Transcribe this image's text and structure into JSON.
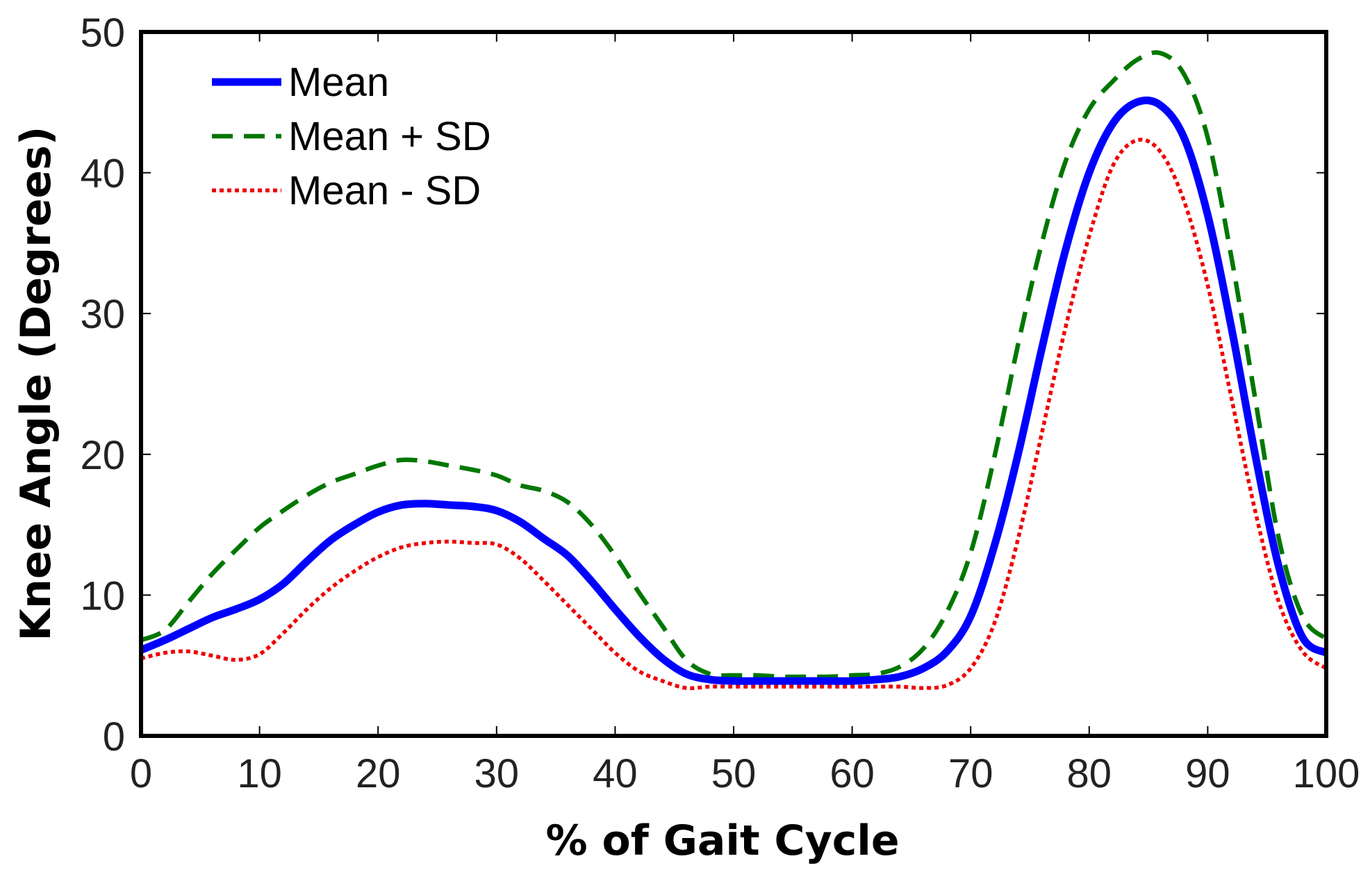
{
  "chart_data": {
    "type": "line",
    "title": "",
    "xlabel": "% of Gait Cycle",
    "ylabel": "Knee Angle (Degrees)",
    "xlim": [
      0,
      100
    ],
    "ylim": [
      0,
      50
    ],
    "xticks": [
      0,
      10,
      20,
      30,
      40,
      50,
      60,
      70,
      80,
      90,
      100
    ],
    "yticks": [
      0,
      10,
      20,
      30,
      40,
      50
    ],
    "grid": false,
    "legend_position": "top-left",
    "x": [
      0,
      2,
      4,
      6,
      8,
      10,
      12,
      14,
      16,
      18,
      20,
      22,
      24,
      26,
      28,
      30,
      32,
      34,
      36,
      38,
      40,
      42,
      44,
      46,
      48,
      50,
      52,
      54,
      56,
      58,
      60,
      62,
      64,
      66,
      68,
      70,
      72,
      74,
      76,
      78,
      80,
      82,
      84,
      86,
      88,
      90,
      92,
      94,
      96,
      98,
      100
    ],
    "series": [
      {
        "name": "Mean",
        "color": "#0000ff",
        "style": "solid",
        "values": [
          6.1,
          6.8,
          7.6,
          8.4,
          9.0,
          9.7,
          10.8,
          12.4,
          13.9,
          15.0,
          15.9,
          16.4,
          16.5,
          16.4,
          16.3,
          16.0,
          15.2,
          14.0,
          12.8,
          11.0,
          9.0,
          7.1,
          5.5,
          4.4,
          4.0,
          3.9,
          3.9,
          3.9,
          3.9,
          3.9,
          3.9,
          4.0,
          4.2,
          4.8,
          6.0,
          8.5,
          13.5,
          20.0,
          27.5,
          34.5,
          40.0,
          43.5,
          45.0,
          44.8,
          42.5,
          37.0,
          29.0,
          20.0,
          12.0,
          7.0,
          5.9
        ]
      },
      {
        "name": "Mean + SD",
        "color": "#007700",
        "style": "dashed",
        "values": [
          6.8,
          7.5,
          9.5,
          11.5,
          13.2,
          14.8,
          16.0,
          17.1,
          18.0,
          18.6,
          19.2,
          19.6,
          19.5,
          19.2,
          18.9,
          18.5,
          17.8,
          17.4,
          16.6,
          15.0,
          12.8,
          10.2,
          7.8,
          5.4,
          4.4,
          4.3,
          4.3,
          4.2,
          4.2,
          4.2,
          4.3,
          4.4,
          4.9,
          6.2,
          8.8,
          13.0,
          19.8,
          27.8,
          35.0,
          40.8,
          44.5,
          46.5,
          48.0,
          48.5,
          47.0,
          42.5,
          34.0,
          24.0,
          14.0,
          8.5,
          6.9
        ]
      },
      {
        "name": "Mean - SD",
        "color": "#ee0000",
        "style": "dotted",
        "values": [
          5.5,
          5.9,
          6.0,
          5.7,
          5.4,
          5.8,
          7.3,
          9.0,
          10.5,
          11.7,
          12.7,
          13.4,
          13.7,
          13.8,
          13.7,
          13.6,
          12.6,
          11.0,
          9.3,
          7.6,
          5.9,
          4.6,
          3.9,
          3.4,
          3.5,
          3.5,
          3.5,
          3.5,
          3.5,
          3.5,
          3.5,
          3.5,
          3.5,
          3.4,
          3.6,
          4.8,
          8.0,
          14.0,
          21.5,
          29.0,
          35.5,
          40.5,
          42.3,
          41.5,
          38.0,
          32.0,
          24.0,
          16.0,
          9.5,
          6.0,
          4.8
        ]
      }
    ]
  }
}
